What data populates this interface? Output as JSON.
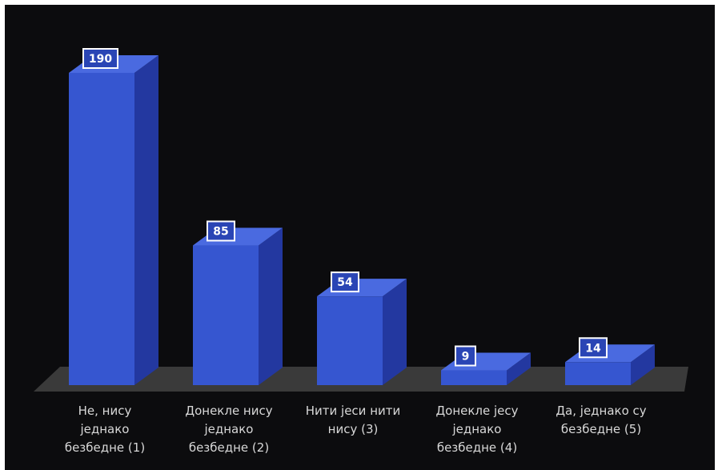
{
  "chart_data": {
    "type": "bar",
    "categories": [
      "Не, нису једнако безбедне (1)",
      "Донекле нису једнако безбедне (2)",
      "Нити јеси нити нису (3)",
      "Донекле јесу једнако безбедне (4)",
      "Да, једнако су безбедне (5)"
    ],
    "category_lines": [
      [
        "Не, нису",
        "једнако",
        "безбедне (1)"
      ],
      [
        "Донекле нису",
        "једнако",
        "безбедне (2)"
      ],
      [
        "Нити јеси нити",
        "нису (3)"
      ],
      [
        "Донекле јесу",
        "једнако",
        "безбедне (4)"
      ],
      [
        "Да, једнако су",
        "безбедне (5)"
      ]
    ],
    "values": [
      190,
      85,
      54,
      9,
      14
    ],
    "title": "",
    "xlabel": "",
    "ylabel": "",
    "ylim": [
      0,
      190
    ],
    "style": "3d-column",
    "grid": false,
    "legend": "none",
    "data_labels": true
  },
  "colors": {
    "background": "#0c0c0e",
    "bar_front": "#3656d0",
    "bar_side": "#2338a0",
    "bar_top": "#4a6ae0",
    "floor": "#3a3a3a",
    "label_box_bg": "#2a45b5",
    "label_box_border": "#ffffff",
    "text": "#d8d8d8"
  }
}
